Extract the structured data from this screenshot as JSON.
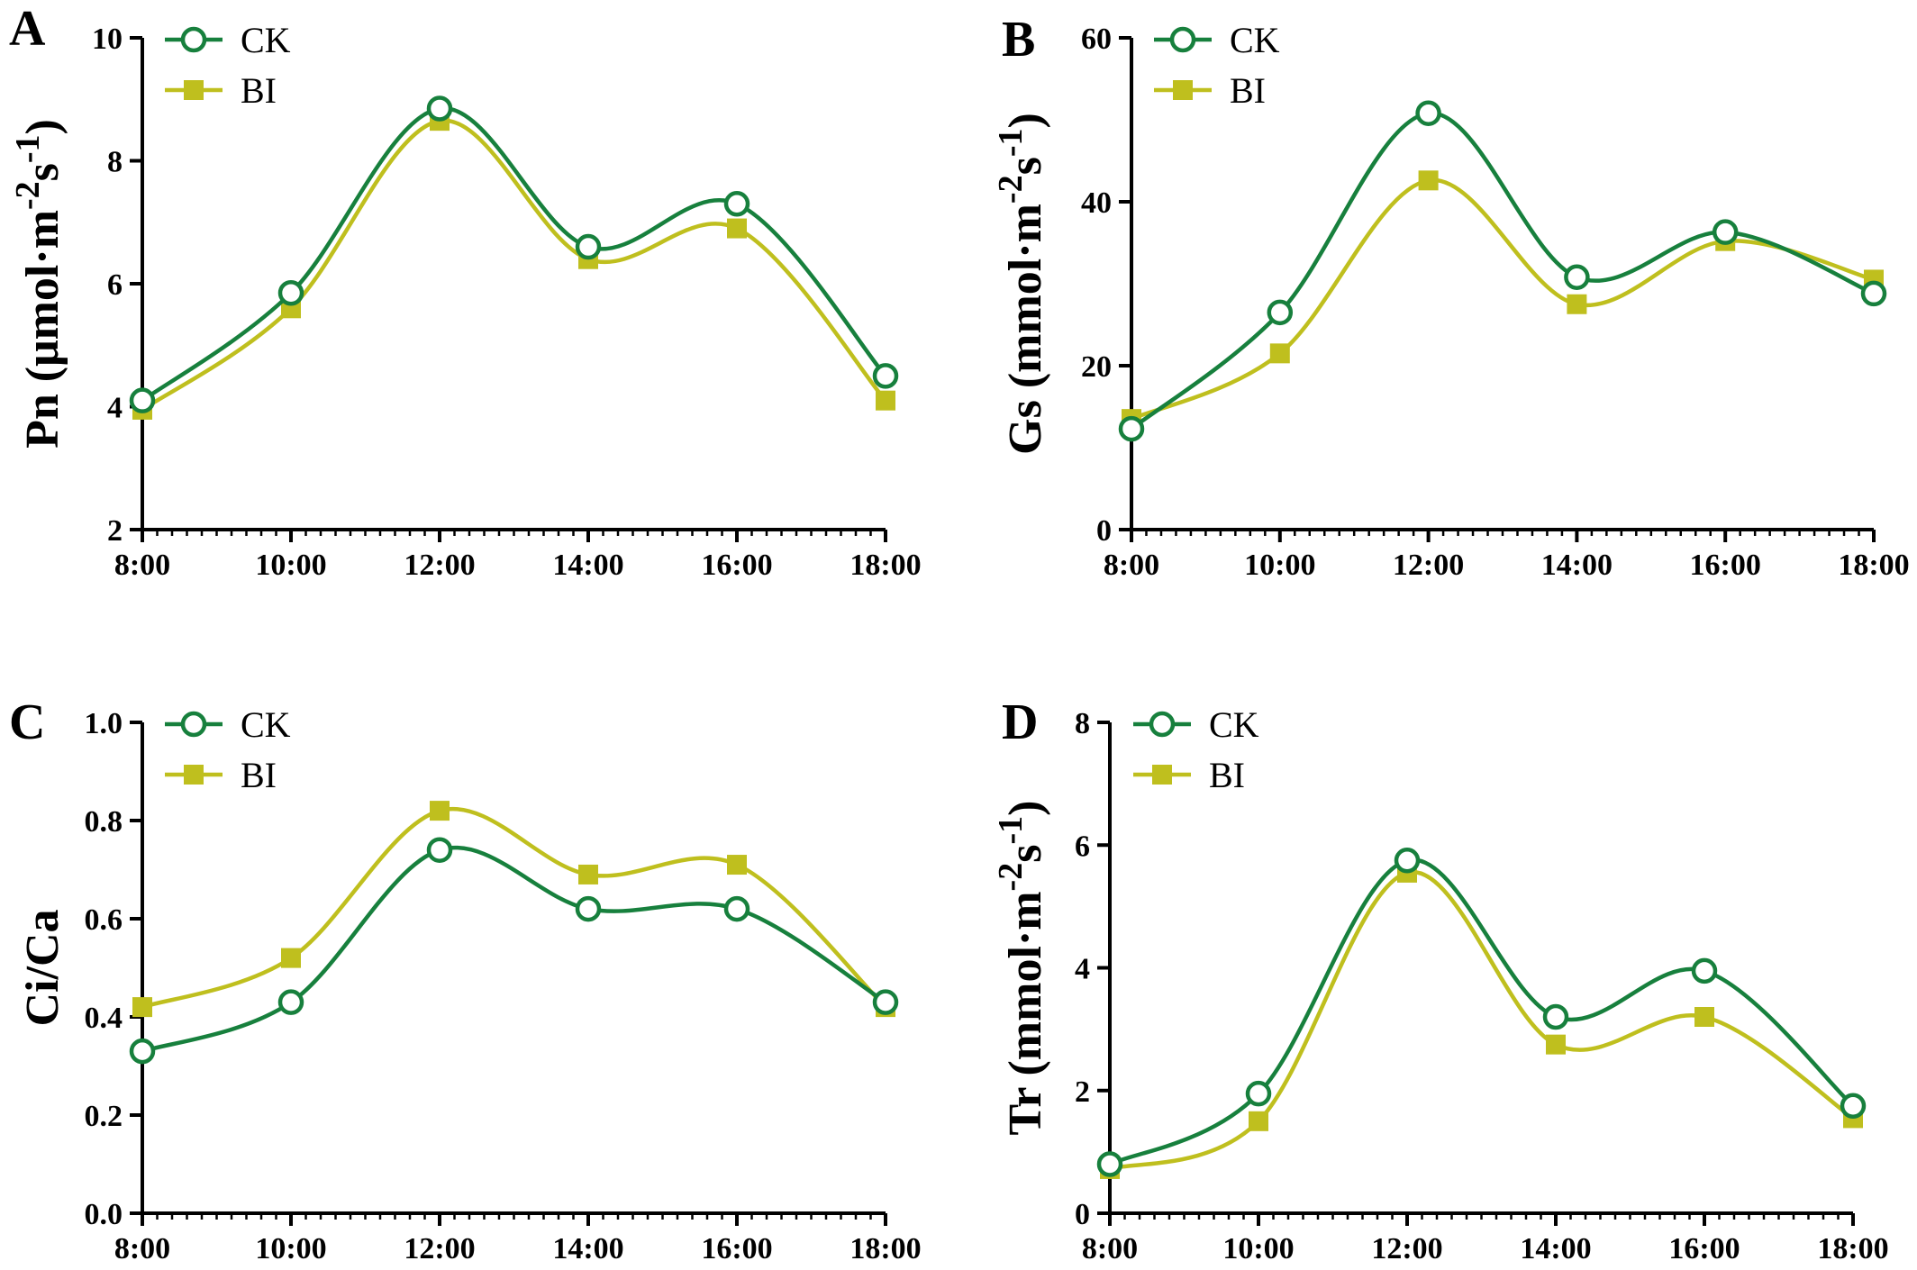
{
  "colors": {
    "ck": "#17803d",
    "bi": "#bfbf1e",
    "axis": "#000000"
  },
  "chart_data": [
    {
      "panel": "A",
      "type": "line",
      "x": [
        "8:00",
        "10:00",
        "12:00",
        "14:00",
        "16:00",
        "18:00"
      ],
      "ylabel_main": "Pn (μmol·m",
      "ylabel_sup1": "-2",
      "ylabel_mid": "s",
      "ylabel_sup2": "-1",
      "ylabel_end": ")",
      "ylim": [
        2,
        10
      ],
      "yticks": [
        2,
        4,
        6,
        8,
        10
      ],
      "ytick_labels": [
        "2",
        "4",
        "6",
        "8",
        "10"
      ],
      "legend": "top-left",
      "series": [
        {
          "name": "CK",
          "marker": "open-circle",
          "values": [
            4.1,
            5.85,
            8.85,
            6.6,
            7.3,
            4.5
          ]
        },
        {
          "name": "BI",
          "marker": "filled-square",
          "values": [
            3.95,
            5.6,
            8.65,
            6.4,
            6.9,
            4.1
          ]
        }
      ]
    },
    {
      "panel": "B",
      "type": "line",
      "x": [
        "8:00",
        "10:00",
        "12:00",
        "14:00",
        "16:00",
        "18:00"
      ],
      "ylabel_main": "Gs (mmol·m",
      "ylabel_sup1": "-2",
      "ylabel_mid": "s",
      "ylabel_sup2": "-1",
      "ylabel_end": ")",
      "ylim": [
        0,
        60
      ],
      "yticks": [
        0,
        20,
        40,
        60
      ],
      "ytick_labels": [
        "0",
        "20",
        "40",
        "60"
      ],
      "legend": "top-left",
      "series": [
        {
          "name": "CK",
          "marker": "open-circle",
          "values": [
            12.3,
            26.5,
            50.8,
            30.8,
            36.3,
            28.8
          ]
        },
        {
          "name": "BI",
          "marker": "filled-square",
          "values": [
            13.5,
            21.5,
            42.6,
            27.5,
            35.2,
            30.5
          ]
        }
      ]
    },
    {
      "panel": "C",
      "type": "line",
      "x": [
        "8:00",
        "10:00",
        "12:00",
        "14:00",
        "16:00",
        "18:00"
      ],
      "ylabel_main": "Ci/Ca",
      "ylabel_sup1": "",
      "ylabel_mid": "",
      "ylabel_sup2": "",
      "ylabel_end": "",
      "ylim": [
        0,
        1.0
      ],
      "yticks": [
        0,
        0.2,
        0.4,
        0.6,
        0.8,
        1.0
      ],
      "ytick_labels": [
        "0.0",
        "0.2",
        "0.4",
        "0.6",
        "0.8",
        "1.0"
      ],
      "legend": "top-left",
      "series": [
        {
          "name": "CK",
          "marker": "open-circle",
          "values": [
            0.33,
            0.43,
            0.74,
            0.62,
            0.62,
            0.43
          ]
        },
        {
          "name": "BI",
          "marker": "filled-square",
          "values": [
            0.42,
            0.52,
            0.82,
            0.69,
            0.71,
            0.42
          ]
        }
      ]
    },
    {
      "panel": "D",
      "type": "line",
      "x": [
        "8:00",
        "10:00",
        "12:00",
        "14:00",
        "16:00",
        "18:00"
      ],
      "ylabel_main": "Tr (mmol·m",
      "ylabel_sup1": "-2",
      "ylabel_mid": "s",
      "ylabel_sup2": "-1",
      "ylabel_end": ")",
      "ylim": [
        0,
        8
      ],
      "yticks": [
        0,
        2,
        4,
        6,
        8
      ],
      "ytick_labels": [
        "0",
        "2",
        "4",
        "6",
        "8"
      ],
      "legend": "top-left",
      "series": [
        {
          "name": "CK",
          "marker": "open-circle",
          "values": [
            0.8,
            1.95,
            5.75,
            3.2,
            3.95,
            1.75
          ]
        },
        {
          "name": "BI",
          "marker": "filled-square",
          "values": [
            0.72,
            1.5,
            5.55,
            2.75,
            3.2,
            1.55
          ]
        }
      ]
    }
  ]
}
